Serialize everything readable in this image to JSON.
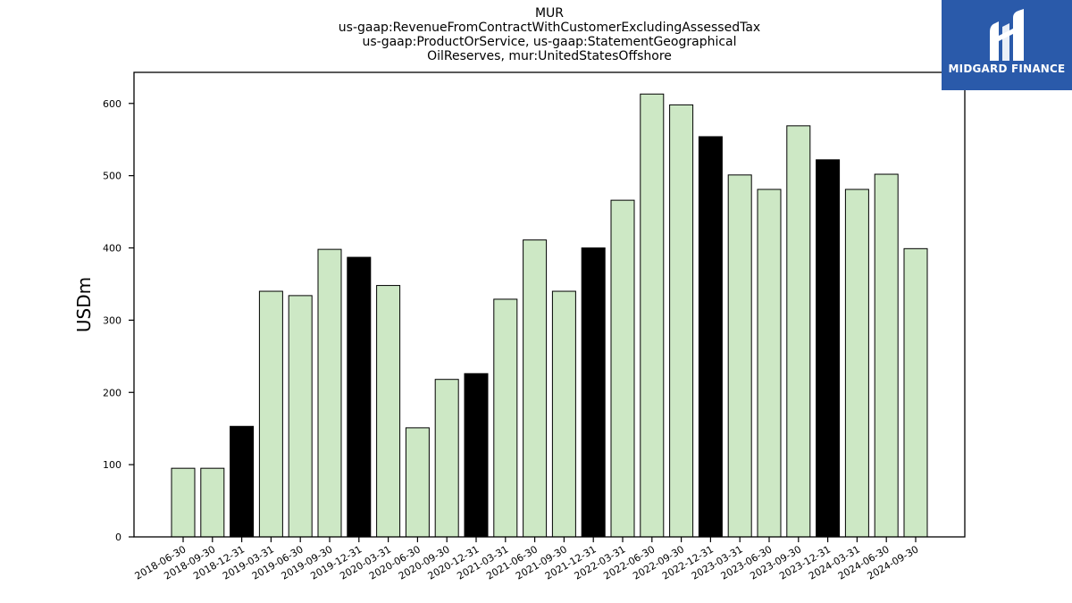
{
  "chart_data": {
    "type": "bar",
    "title_lines": [
      "MUR",
      "us-gaap:RevenueFromContractWithCustomerExcludingAssessedTax",
      "us-gaap:ProductOrService, us-gaap:StatementGeographical",
      "OilReserves, mur:UnitedStatesOffshore"
    ],
    "ylabel": "USDm",
    "ylim": [
      0,
      643
    ],
    "yticks": [
      0,
      100,
      200,
      300,
      400,
      500,
      600
    ],
    "categories": [
      "2018-06-30",
      "2018-09-30",
      "2018-12-31",
      "2019-03-31",
      "2019-06-30",
      "2019-09-30",
      "2019-12-31",
      "2020-03-31",
      "2020-06-30",
      "2020-09-30",
      "2020-12-31",
      "2021-03-31",
      "2021-06-30",
      "2021-09-30",
      "2021-12-31",
      "2022-03-31",
      "2022-06-30",
      "2022-09-30",
      "2022-12-31",
      "2023-03-31",
      "2023-06-30",
      "2023-09-30",
      "2023-12-31",
      "2024-03-31",
      "2024-06-30",
      "2024-09-30"
    ],
    "values": [
      95,
      95,
      153,
      340,
      334,
      398,
      387,
      348,
      151,
      218,
      226,
      329,
      411,
      340,
      400,
      466,
      613,
      598,
      554,
      501,
      481,
      569,
      522,
      481,
      502,
      399
    ],
    "highlight": [
      false,
      false,
      true,
      false,
      false,
      false,
      true,
      false,
      false,
      false,
      true,
      false,
      false,
      false,
      true,
      false,
      false,
      false,
      true,
      false,
      false,
      false,
      true,
      false,
      false,
      false
    ],
    "colors": {
      "normal": "#cde8c5",
      "highlight": "#000000",
      "edge": "#000000"
    },
    "grid": false
  },
  "logo": {
    "text": "MIDGARD FINANCE",
    "bg": "#2a5aaa"
  }
}
